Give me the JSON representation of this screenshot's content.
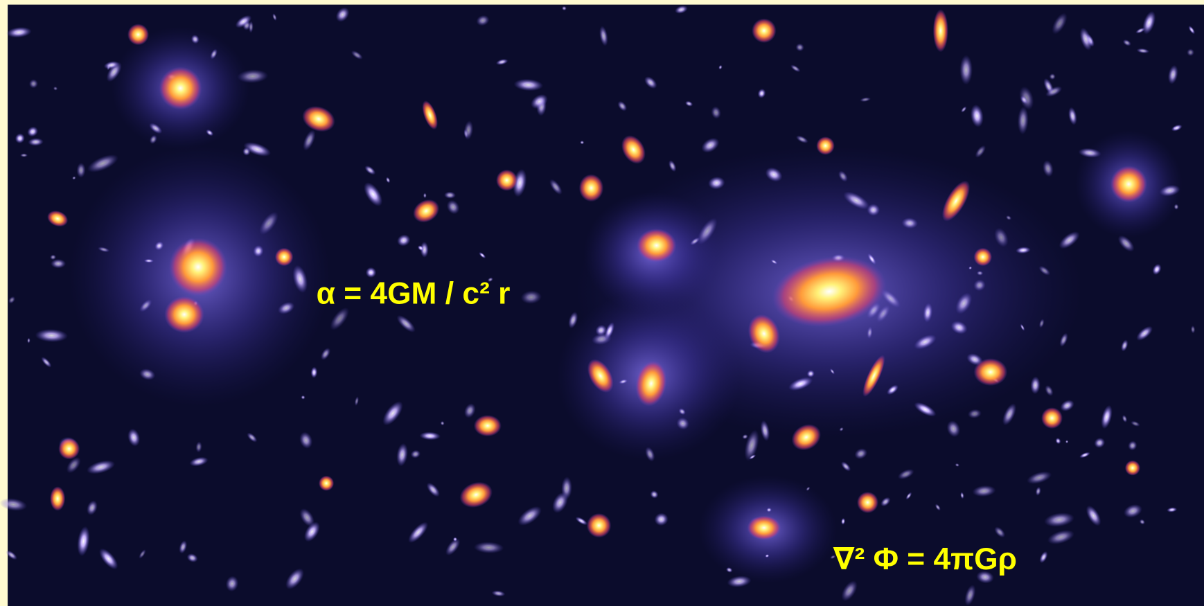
{
  "equation_lens": "α = 4GM / c² r",
  "equation_poisson": "∇² Φ = 4πGρ"
}
